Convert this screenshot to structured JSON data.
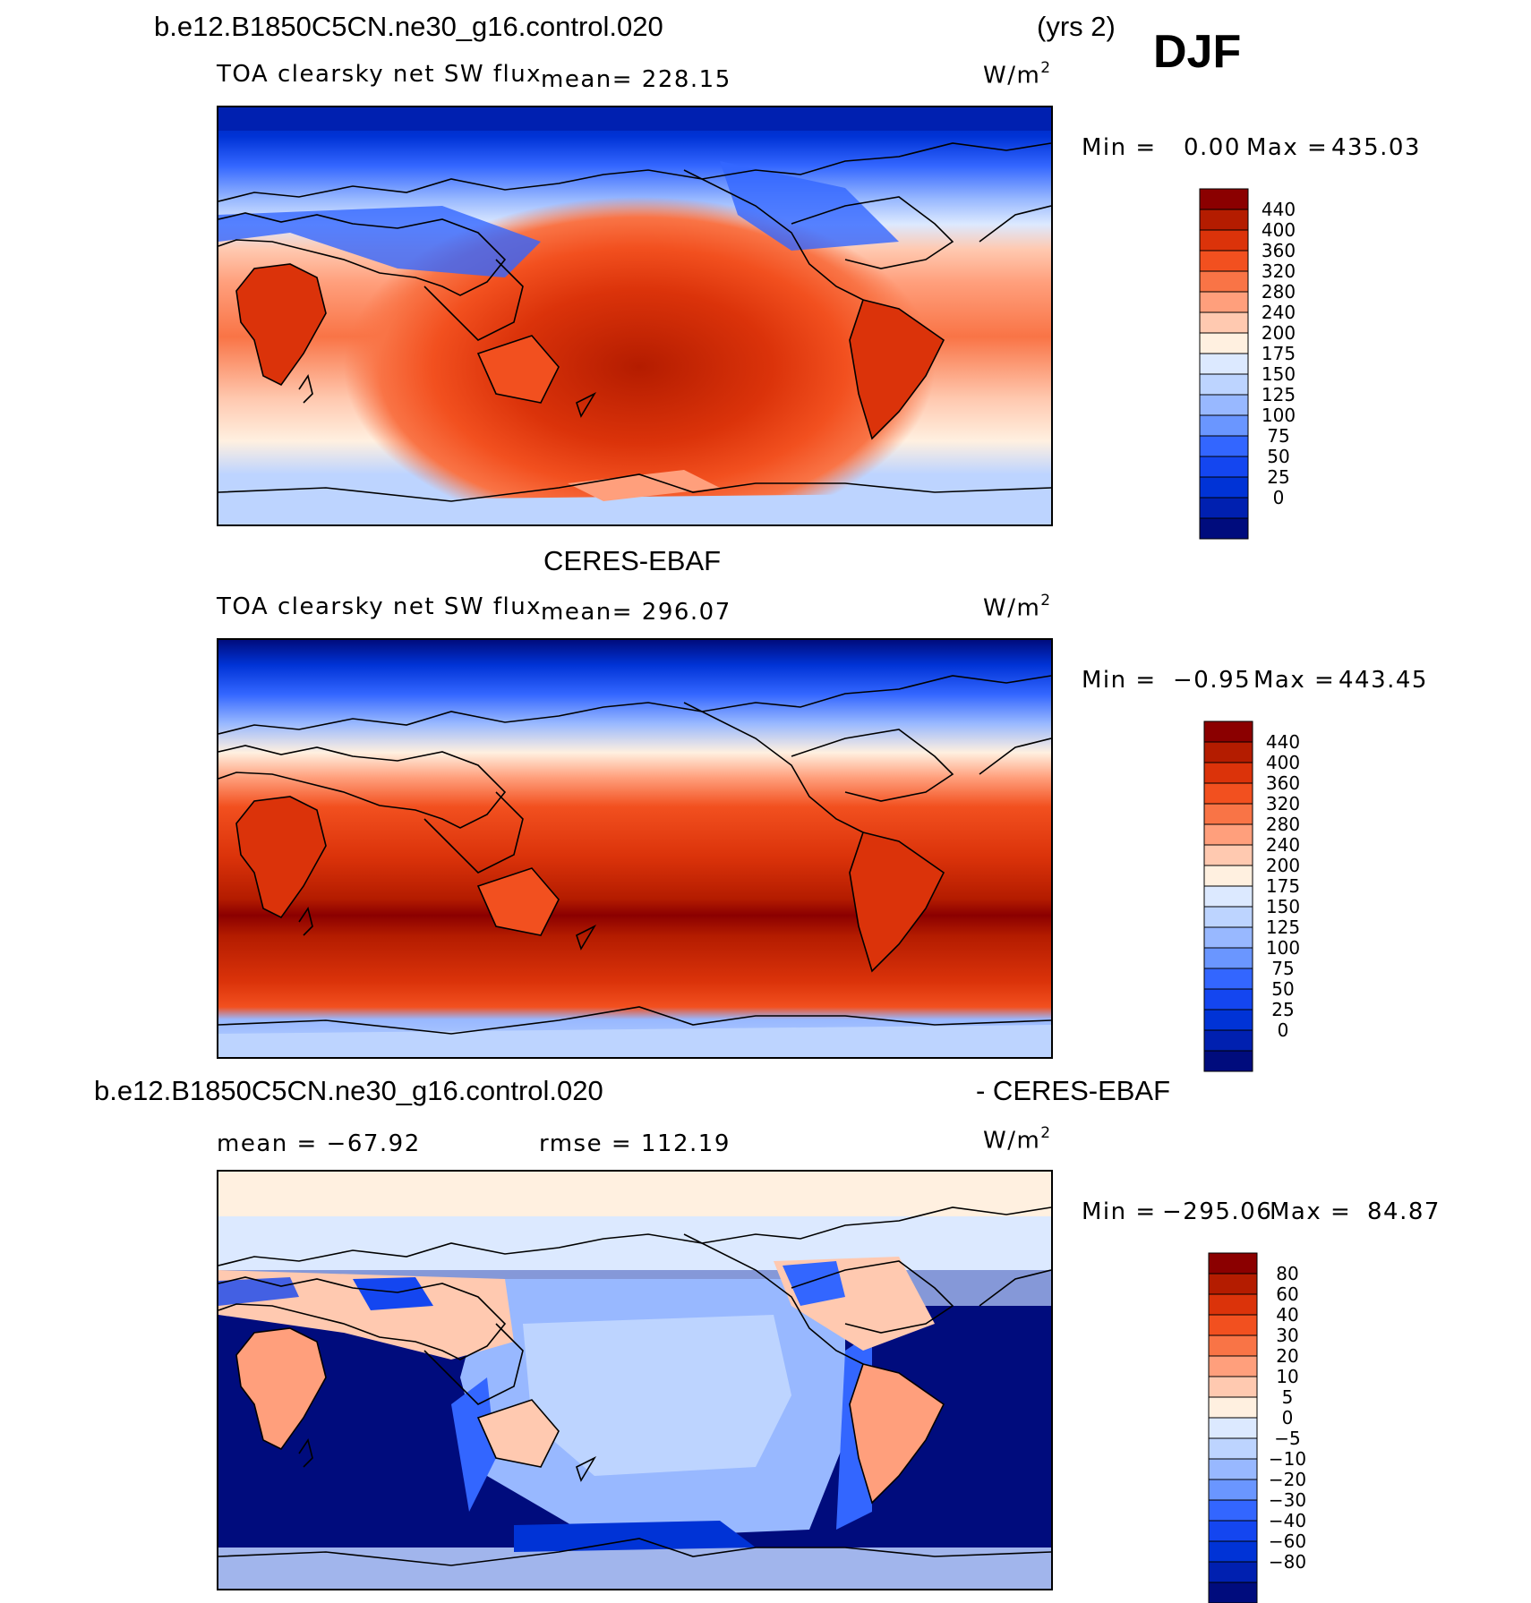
{
  "season": "DJF",
  "panels": [
    {
      "id": "model",
      "header_left": "b.e12.B1850C5CN.ne30_g16.control.020",
      "header_right": "(yrs 2)",
      "variable": "TOA clearsky net SW flux",
      "stat_text": "mean=  228.15",
      "units": "W/m",
      "units_exp": "2",
      "min_label": "Min  =",
      "min_value": "0.00",
      "max_label": "Max  =",
      "max_value": "435.03",
      "legend_labels": [
        "440",
        "400",
        "360",
        "320",
        "280",
        "240",
        "200",
        "175",
        "150",
        "125",
        "100",
        "75",
        "50",
        "25",
        "0"
      ]
    },
    {
      "id": "obs",
      "header_center": "CERES-EBAF",
      "variable": "TOA clearsky net SW flux",
      "stat_text": "mean=  296.07",
      "units": "W/m",
      "units_exp": "2",
      "min_label": "Min  =",
      "min_value": "−0.95",
      "max_label": "Max  =",
      "max_value": "443.45",
      "legend_labels": [
        "440",
        "400",
        "360",
        "320",
        "280",
        "240",
        "200",
        "175",
        "150",
        "125",
        "100",
        "75",
        "50",
        "25",
        "0"
      ]
    },
    {
      "id": "diff",
      "header_left": "b.e12.B1850C5CN.ne30_g16.control.020",
      "header_right": "- CERES-EBAF",
      "mean_text": "mean  =  −67.92",
      "rmse_text": "rmse  =  112.19",
      "units": "W/m",
      "units_exp": "2",
      "min_label": "Min  =",
      "min_value": "−295.06",
      "max_label": "Max  =",
      "max_value": "84.87",
      "legend_labels": [
        "80",
        "60",
        "40",
        "30",
        "20",
        "10",
        "5",
        "0",
        "−5",
        "−10",
        "−20",
        "−30",
        "−40",
        "−60",
        "−80"
      ]
    }
  ],
  "colors": {
    "abs_scale": [
      "#000c7d",
      "#0020b0",
      "#0033d6",
      "#1446f0",
      "#3366ff",
      "#6a96ff",
      "#98b8ff",
      "#bdd4ff",
      "#dce9ff",
      "#fff0e0",
      "#ffc9b0",
      "#ff9f7c",
      "#f97446",
      "#f2501f",
      "#db330a",
      "#b41c00",
      "#8b0000"
    ],
    "diff_scale": [
      "#000c7d",
      "#0020b0",
      "#0033d6",
      "#1446f0",
      "#3366ff",
      "#6a96ff",
      "#98b8ff",
      "#bdd4ff",
      "#dce9ff",
      "#fff0e0",
      "#ffc9b0",
      "#ff9f7c",
      "#f97446",
      "#f2501f",
      "#db330a",
      "#b41c00",
      "#8b0000"
    ],
    "land_outline": "#000000"
  }
}
